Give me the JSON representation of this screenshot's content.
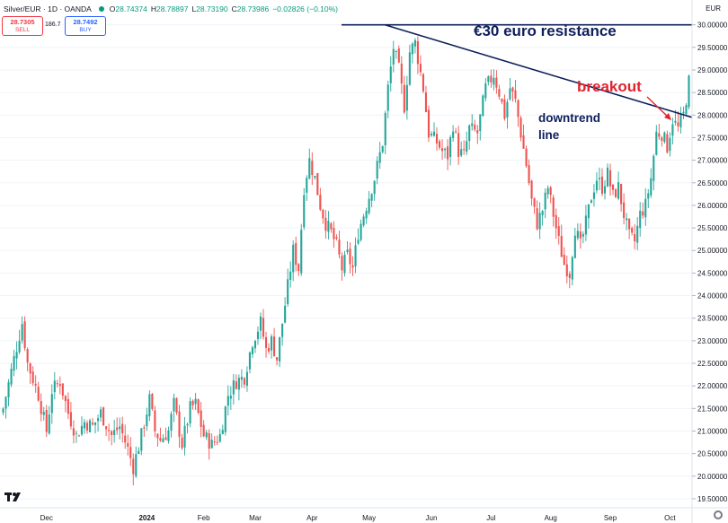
{
  "header": {
    "symbol": "Silver/EUR · 1D · OANDA",
    "open_label": "O",
    "open": "28.74374",
    "high_label": "H",
    "high": "28.78897",
    "low_label": "L",
    "low": "28.73190",
    "close_label": "C",
    "close": "28.73986",
    "change": "−0.02826 (−0.10%)"
  },
  "trade": {
    "sell_price": "28.7305",
    "sell_label": "SELL",
    "spread": "186.7",
    "buy_price": "28.7492",
    "buy_label": "BUY"
  },
  "currency": "EUR",
  "annotations": {
    "resistance": "€30 euro resistance",
    "breakout": "breakout",
    "downtrend_1": "downtrend",
    "downtrend_2": "line"
  },
  "colors": {
    "up": "#26a69a",
    "down": "#ef5350",
    "annotation": "#0d1f5c",
    "breakout": "#e0232f"
  },
  "chart_data": {
    "type": "candlestick",
    "title": "Silver/EUR · 1D · OANDA",
    "x_tick_labels": [
      "Dec",
      "2024",
      "Feb",
      "Mar",
      "Apr",
      "May",
      "Jun",
      "Jul",
      "Aug",
      "Sep",
      "Oct"
    ],
    "y_tick_labels": [
      "19.50000",
      "20.00000",
      "20.50000",
      "21.00000",
      "21.50000",
      "22.00000",
      "22.50000",
      "23.00000",
      "23.50000",
      "24.00000",
      "24.50000",
      "25.00000",
      "25.50000",
      "26.00000",
      "26.50000",
      "27.00000",
      "27.50000",
      "28.00000",
      "28.50000",
      "29.00000",
      "29.50000",
      "30.00000"
    ],
    "ylim": [
      19.3,
      30.55
    ],
    "candle_count": 254,
    "close_path": [
      [
        0,
        21.5
      ],
      [
        4,
        22.6
      ],
      [
        7,
        23.4
      ],
      [
        9,
        22.5
      ],
      [
        13,
        21.8
      ],
      [
        16,
        21.0
      ],
      [
        18,
        21.9
      ],
      [
        21,
        22.1
      ],
      [
        24,
        21.4
      ],
      [
        27,
        20.9
      ],
      [
        30,
        21.2
      ],
      [
        33,
        21.1
      ],
      [
        36,
        21.4
      ],
      [
        40,
        20.9
      ],
      [
        43,
        21.1
      ],
      [
        46,
        20.6
      ],
      [
        48,
        20.2
      ],
      [
        51,
        20.9
      ],
      [
        54,
        21.7
      ],
      [
        56,
        21.0
      ],
      [
        58,
        20.8
      ],
      [
        61,
        21.0
      ],
      [
        63,
        21.6
      ],
      [
        66,
        20.7
      ],
      [
        69,
        21.5
      ],
      [
        71,
        21.6
      ],
      [
        74,
        20.9
      ],
      [
        77,
        20.7
      ],
      [
        80,
        20.9
      ],
      [
        83,
        21.8
      ],
      [
        86,
        22.1
      ],
      [
        89,
        22.2
      ],
      [
        92,
        23.0
      ],
      [
        95,
        23.4
      ],
      [
        97,
        22.8
      ],
      [
        99,
        23.0
      ],
      [
        101,
        22.6
      ],
      [
        104,
        23.8
      ],
      [
        107,
        25.0
      ],
      [
        109,
        24.6
      ],
      [
        111,
        26.4
      ],
      [
        113,
        27.0
      ],
      [
        115,
        26.6
      ],
      [
        117,
        26.0
      ],
      [
        119,
        25.6
      ],
      [
        121,
        25.4
      ],
      [
        123,
        25.1
      ],
      [
        125,
        24.6
      ],
      [
        127,
        24.9
      ],
      [
        129,
        24.6
      ],
      [
        131,
        25.4
      ],
      [
        134,
        26.0
      ],
      [
        137,
        26.6
      ],
      [
        140,
        27.4
      ],
      [
        142,
        28.6
      ],
      [
        144,
        29.5
      ],
      [
        146,
        29.0
      ],
      [
        148,
        28.2
      ],
      [
        150,
        29.4
      ],
      [
        152,
        29.6
      ],
      [
        155,
        28.6
      ],
      [
        157,
        27.6
      ],
      [
        160,
        27.4
      ],
      [
        162,
        27.2
      ],
      [
        164,
        27.1
      ],
      [
        166,
        27.8
      ],
      [
        168,
        27.2
      ],
      [
        170,
        27.1
      ],
      [
        172,
        27.7
      ],
      [
        175,
        27.6
      ],
      [
        178,
        28.6
      ],
      [
        181,
        28.9
      ],
      [
        183,
        28.5
      ],
      [
        185,
        28.0
      ],
      [
        187,
        28.6
      ],
      [
        189,
        28.3
      ],
      [
        191,
        27.6
      ],
      [
        193,
        26.9
      ],
      [
        195,
        26.1
      ],
      [
        197,
        25.6
      ],
      [
        199,
        25.9
      ],
      [
        201,
        26.4
      ],
      [
        203,
        25.8
      ],
      [
        205,
        25.2
      ],
      [
        207,
        24.7
      ],
      [
        209,
        24.5
      ],
      [
        211,
        25.5
      ],
      [
        213,
        25.1
      ],
      [
        215,
        25.6
      ],
      [
        217,
        26.2
      ],
      [
        219,
        26.6
      ],
      [
        221,
        26.4
      ],
      [
        223,
        26.7
      ],
      [
        225,
        26.2
      ],
      [
        227,
        26.4
      ],
      [
        229,
        25.8
      ],
      [
        231,
        25.3
      ],
      [
        233,
        25.2
      ],
      [
        235,
        25.8
      ],
      [
        237,
        26.0
      ],
      [
        239,
        26.6
      ],
      [
        241,
        27.6
      ],
      [
        243,
        27.6
      ],
      [
        245,
        27.3
      ],
      [
        247,
        27.9
      ],
      [
        249,
        27.7
      ],
      [
        251,
        28.0
      ],
      [
        253,
        28.74
      ]
    ],
    "lines": [
      {
        "name": "resistance",
        "from": [
          124,
          30.0
        ],
        "to": [
          254,
          30.0
        ]
      },
      {
        "name": "downtrend",
        "from": [
          140,
          30.0
        ],
        "to": [
          254,
          27.95
        ]
      }
    ]
  }
}
